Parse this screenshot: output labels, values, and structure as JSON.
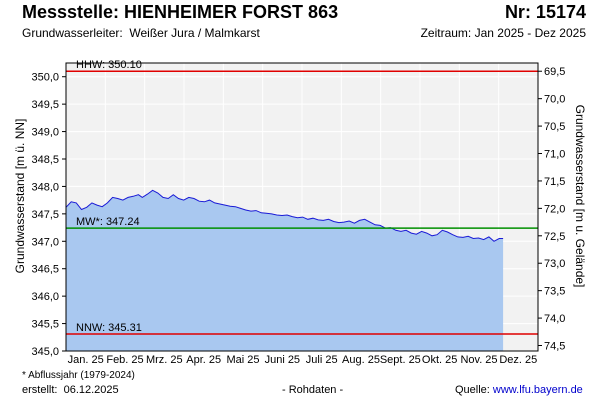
{
  "header": {
    "title": "Messstelle: HIENHEIMER FORST 863",
    "number": "Nr: 15174",
    "aquifer_label": "Grundwasserleiter:",
    "aquifer_value": "Weißer Jura / Malmkarst",
    "period": "Zeitraum: Jan 2025 - Dez 2025"
  },
  "footer": {
    "footnote": "* Abflussjahr (1979-2024)",
    "created_label": "erstellt:",
    "created_date": "06.12.2025",
    "raw_data": "- Rohdaten -",
    "source_label": "Quelle:",
    "source_url": "www.lfu.bayern.de"
  },
  "colors": {
    "plot_background": "#f2f2f2",
    "area_fill": "#a9c8f0",
    "series_line": "#1a1ad6",
    "hhw_line": "#e00000",
    "mw_line": "#009000",
    "nnw_line": "#e00000",
    "grid": "#ffffff"
  },
  "chart_data": {
    "type": "area",
    "ylabel": "Grundwasserstand [m ü. NN]",
    "y2label": "Grundwasserstand [m u. Gelände]",
    "ylim": [
      345.0,
      350.25
    ],
    "yticks": [
      "345,0",
      "345,5",
      "346,0",
      "346,5",
      "347,0",
      "347,5",
      "348,0",
      "348,5",
      "349,0",
      "349,5",
      "350,0"
    ],
    "y2ticks": [
      "69,5",
      "70,0",
      "70,5",
      "71,0",
      "71,5",
      "72,0",
      "72,5",
      "73,0",
      "73,5",
      "74,0",
      "74,5"
    ],
    "x_categories": [
      "Jan. 25",
      "Feb. 25",
      "Mrz. 25",
      "Apr. 25",
      "Mai 25",
      "Juni 25",
      "Juli 25",
      "Aug. 25",
      "Sept. 25",
      "Okt. 25",
      "Nov. 25",
      "Dez. 25"
    ],
    "grid": true,
    "reference_lines": [
      {
        "label": "HHW: 350.10",
        "value": 350.1
      },
      {
        "label": "MW*: 347.24",
        "value": 347.24
      },
      {
        "label": "NNW: 345.31",
        "value": 345.31
      }
    ],
    "series": [
      {
        "x": [
          "2025-01-01",
          "2025-01-05",
          "2025-01-09",
          "2025-01-13",
          "2025-01-17",
          "2025-01-21",
          "2025-01-25",
          "2025-01-29",
          "2025-02-02",
          "2025-02-06",
          "2025-02-10",
          "2025-02-14",
          "2025-02-18",
          "2025-02-22",
          "2025-02-26",
          "2025-03-01",
          "2025-03-05",
          "2025-03-09",
          "2025-03-13",
          "2025-03-17",
          "2025-03-21",
          "2025-03-25",
          "2025-03-29",
          "2025-04-02",
          "2025-04-06",
          "2025-04-10",
          "2025-04-14",
          "2025-04-18",
          "2025-04-22",
          "2025-04-26",
          "2025-04-30",
          "2025-05-04",
          "2025-05-08",
          "2025-05-12",
          "2025-05-16",
          "2025-05-20",
          "2025-05-24",
          "2025-05-28",
          "2025-06-01",
          "2025-06-05",
          "2025-06-09",
          "2025-06-13",
          "2025-06-17",
          "2025-06-21",
          "2025-06-25",
          "2025-06-29",
          "2025-07-03",
          "2025-07-07",
          "2025-07-11",
          "2025-07-15",
          "2025-07-19",
          "2025-07-23",
          "2025-07-27",
          "2025-07-31",
          "2025-08-04",
          "2025-08-08",
          "2025-08-12",
          "2025-08-16",
          "2025-08-20",
          "2025-08-24",
          "2025-08-28",
          "2025-09-01",
          "2025-09-05",
          "2025-09-09",
          "2025-09-13",
          "2025-09-17",
          "2025-09-21",
          "2025-09-25",
          "2025-09-29",
          "2025-10-03",
          "2025-10-07",
          "2025-10-11",
          "2025-10-15",
          "2025-10-19",
          "2025-10-23",
          "2025-10-27",
          "2025-10-31",
          "2025-11-04",
          "2025-11-08",
          "2025-11-12",
          "2025-11-16",
          "2025-11-20",
          "2025-11-24",
          "2025-11-28",
          "2025-12-02",
          "2025-12-05"
        ],
        "y": [
          347.62,
          347.72,
          347.7,
          347.58,
          347.62,
          347.7,
          347.66,
          347.63,
          347.7,
          347.8,
          347.78,
          347.75,
          347.8,
          347.82,
          347.85,
          347.8,
          347.86,
          347.93,
          347.88,
          347.8,
          347.78,
          347.85,
          347.78,
          347.75,
          347.8,
          347.78,
          347.73,
          347.72,
          347.75,
          347.7,
          347.68,
          347.66,
          347.64,
          347.63,
          347.6,
          347.57,
          347.55,
          347.56,
          347.52,
          347.51,
          347.5,
          347.48,
          347.47,
          347.48,
          347.45,
          347.43,
          347.44,
          347.4,
          347.42,
          347.39,
          347.38,
          347.4,
          347.36,
          347.34,
          347.35,
          347.37,
          347.33,
          347.38,
          347.4,
          347.35,
          347.3,
          347.29,
          347.24,
          347.25,
          347.2,
          347.18,
          347.2,
          347.15,
          347.13,
          347.18,
          347.15,
          347.1,
          347.12,
          347.2,
          347.17,
          347.12,
          347.08,
          347.07,
          347.09,
          347.05,
          347.06,
          347.03,
          347.08,
          347.0,
          347.05,
          347.05
        ]
      }
    ]
  }
}
